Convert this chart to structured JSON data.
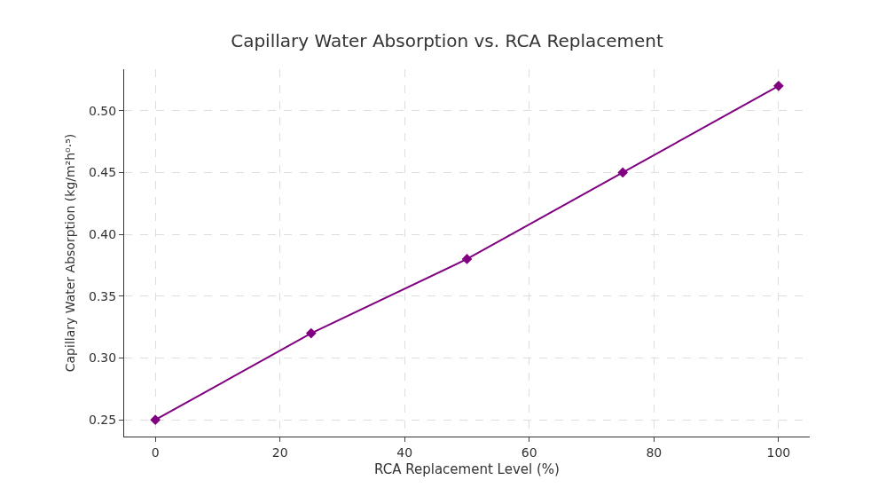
{
  "chart_data": {
    "type": "line",
    "title": "Capillary Water Absorption vs. RCA Replacement",
    "xlabel": "RCA Replacement Level (%)",
    "ylabel": "Capillary Water Absorption (kg/m²h⁰·⁵)",
    "x": [
      0,
      25,
      50,
      75,
      100
    ],
    "series": [
      {
        "color": "#800080",
        "values": [
          0.25,
          0.32,
          0.38,
          0.45,
          0.52
        ]
      }
    ],
    "xlim": [
      -5,
      105
    ],
    "xticks": [
      0,
      20,
      40,
      60,
      80,
      100
    ],
    "ylim": [
      0.2365,
      0.5335
    ],
    "yticks": [
      {
        "value": 0.25,
        "label": "0.25"
      },
      {
        "value": 0.3,
        "label": "0.30"
      },
      {
        "value": 0.35,
        "label": "0.35"
      },
      {
        "value": 0.4,
        "label": "0.40"
      },
      {
        "value": 0.45,
        "label": "0.45"
      },
      {
        "value": 0.5,
        "label": "0.50"
      }
    ],
    "grid": true,
    "marker": "diamond",
    "line_style": "solid"
  }
}
